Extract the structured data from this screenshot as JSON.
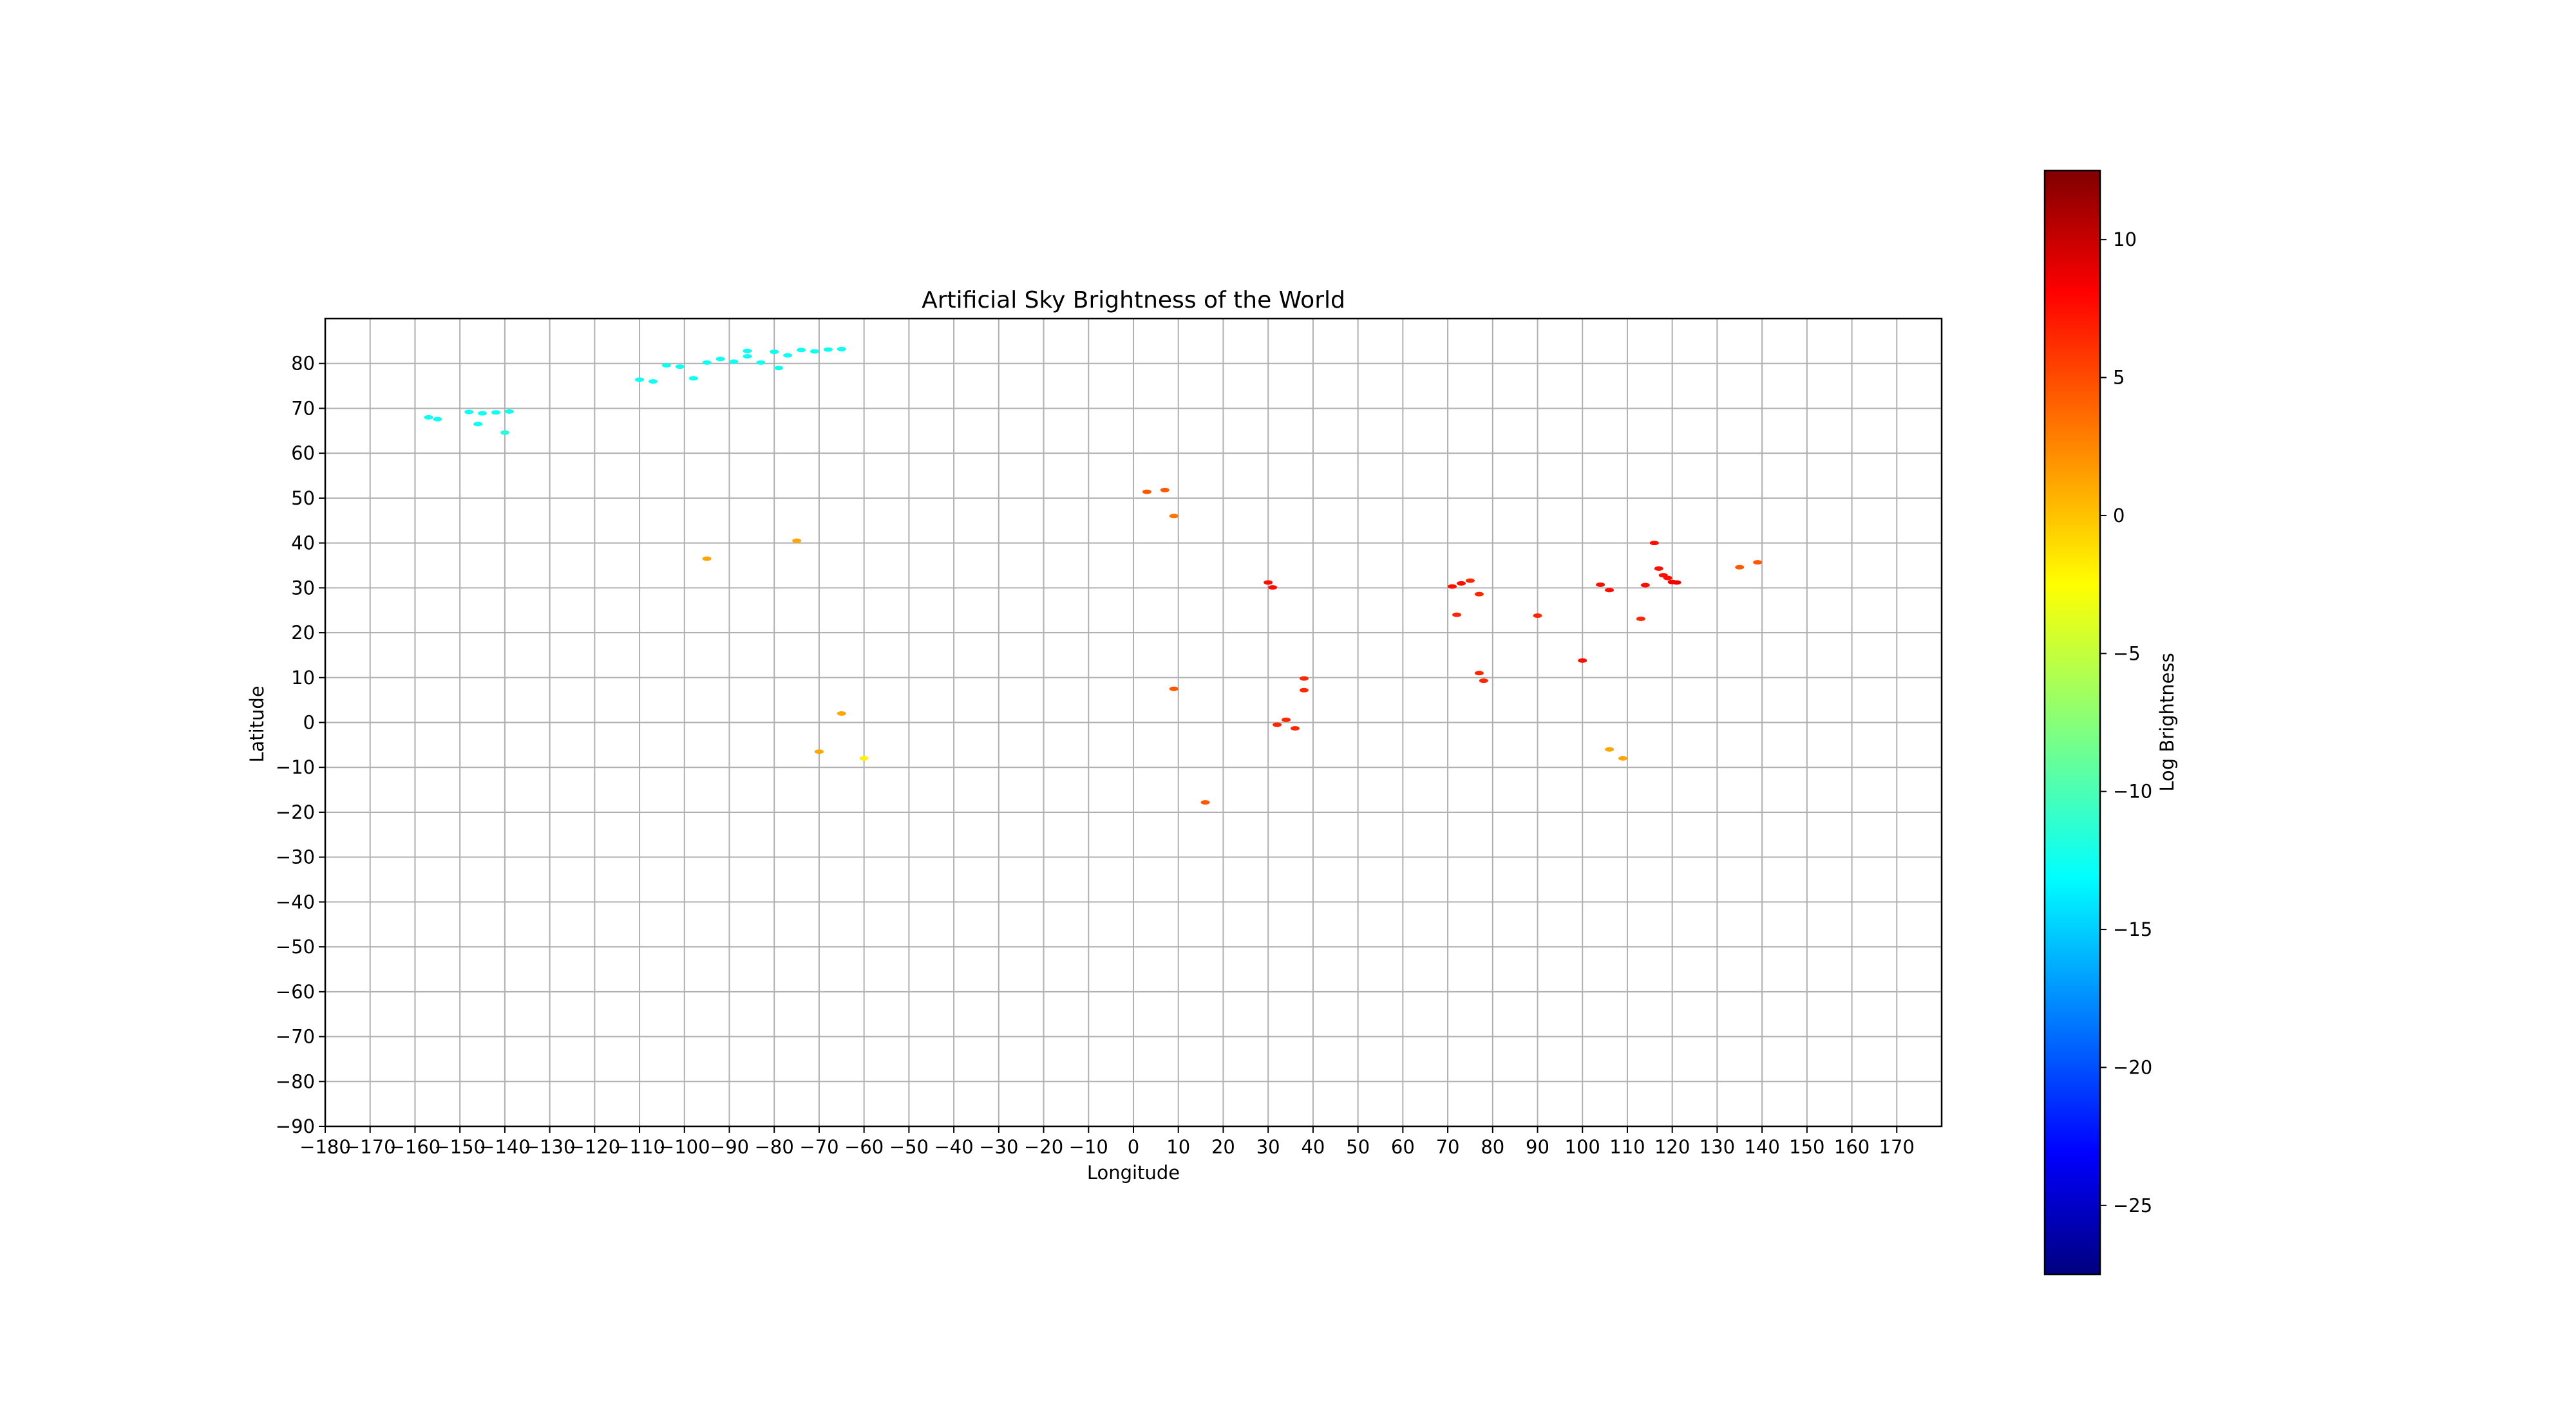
{
  "chart_data": {
    "type": "heatmap",
    "title": "Artificial Sky Brightness of the World",
    "xlabel": "Longitude",
    "ylabel": "Latitude",
    "xlim": [
      -180,
      180
    ],
    "ylim": [
      -90,
      90
    ],
    "xticks": [
      -180,
      -170,
      -160,
      -150,
      -140,
      -130,
      -120,
      -110,
      -100,
      -90,
      -80,
      -70,
      -60,
      -50,
      -40,
      -30,
      -20,
      -10,
      0,
      10,
      20,
      30,
      40,
      50,
      60,
      70,
      80,
      90,
      100,
      110,
      120,
      130,
      140,
      150,
      160,
      170
    ],
    "yticks": [
      80,
      70,
      60,
      50,
      40,
      30,
      20,
      10,
      0,
      -10,
      -20,
      -30,
      -40,
      -50,
      -60,
      -70,
      -80,
      -90
    ],
    "grid": true,
    "colormap": "jet",
    "colorbar": {
      "label": "Log Brightness",
      "min": -27.5,
      "max": 12.5,
      "ticks": [
        10,
        5,
        0,
        -5,
        -10,
        -15,
        -20,
        -25
      ]
    },
    "points": [
      {
        "lon": -157,
        "lat": 68.0,
        "v": -12
      },
      {
        "lon": -155,
        "lat": 67.6,
        "v": -12
      },
      {
        "lon": -148,
        "lat": 69.2,
        "v": -12
      },
      {
        "lon": -145,
        "lat": 68.9,
        "v": -12
      },
      {
        "lon": -142,
        "lat": 69.1,
        "v": -12
      },
      {
        "lon": -139,
        "lat": 69.3,
        "v": -12
      },
      {
        "lon": -146,
        "lat": 66.5,
        "v": -12
      },
      {
        "lon": -140,
        "lat": 64.6,
        "v": -11
      },
      {
        "lon": -110,
        "lat": 76.4,
        "v": -12
      },
      {
        "lon": -107,
        "lat": 76.0,
        "v": -12
      },
      {
        "lon": -104,
        "lat": 79.6,
        "v": -12
      },
      {
        "lon": -101,
        "lat": 79.3,
        "v": -12
      },
      {
        "lon": -98,
        "lat": 76.7,
        "v": -12
      },
      {
        "lon": -95,
        "lat": 80.2,
        "v": -12
      },
      {
        "lon": -92,
        "lat": 81.0,
        "v": -12
      },
      {
        "lon": -89,
        "lat": 80.4,
        "v": -12
      },
      {
        "lon": -86,
        "lat": 81.6,
        "v": -12
      },
      {
        "lon": -83,
        "lat": 80.2,
        "v": -12
      },
      {
        "lon": -80,
        "lat": 82.6,
        "v": -12
      },
      {
        "lon": -77,
        "lat": 81.8,
        "v": -12
      },
      {
        "lon": -74,
        "lat": 83.0,
        "v": -12
      },
      {
        "lon": -71,
        "lat": 82.7,
        "v": -12
      },
      {
        "lon": -68,
        "lat": 83.1,
        "v": -12
      },
      {
        "lon": -65,
        "lat": 83.2,
        "v": -12
      },
      {
        "lon": -79,
        "lat": 79.0,
        "v": -12
      },
      {
        "lon": -86,
        "lat": 82.8,
        "v": -12
      },
      {
        "lon": 3,
        "lat": 51.4,
        "v": 4
      },
      {
        "lon": 7,
        "lat": 51.8,
        "v": 4
      },
      {
        "lon": 30,
        "lat": 31.2,
        "v": 7
      },
      {
        "lon": 31,
        "lat": 30.1,
        "v": 7
      },
      {
        "lon": 32,
        "lat": -0.5,
        "v": 6
      },
      {
        "lon": 34,
        "lat": 0.6,
        "v": 6
      },
      {
        "lon": 36,
        "lat": -1.3,
        "v": 6
      },
      {
        "lon": 38,
        "lat": 7.2,
        "v": 6
      },
      {
        "lon": 38,
        "lat": 9.8,
        "v": 6
      },
      {
        "lon": 71,
        "lat": 30.3,
        "v": 7
      },
      {
        "lon": 73,
        "lat": 31.0,
        "v": 7
      },
      {
        "lon": 72,
        "lat": 24.0,
        "v": 6
      },
      {
        "lon": 75,
        "lat": 31.6,
        "v": 6
      },
      {
        "lon": 77,
        "lat": 28.6,
        "v": 6
      },
      {
        "lon": 77,
        "lat": 11.0,
        "v": 6
      },
      {
        "lon": 78,
        "lat": 9.3,
        "v": 6
      },
      {
        "lon": 90,
        "lat": 23.8,
        "v": 6
      },
      {
        "lon": 100,
        "lat": 13.8,
        "v": 7
      },
      {
        "lon": 104,
        "lat": 30.7,
        "v": 7
      },
      {
        "lon": 106,
        "lat": 29.5,
        "v": 7
      },
      {
        "lon": 113,
        "lat": 23.1,
        "v": 6
      },
      {
        "lon": 114,
        "lat": 30.6,
        "v": 7
      },
      {
        "lon": 116,
        "lat": 40.0,
        "v": 7
      },
      {
        "lon": 117,
        "lat": 34.3,
        "v": 7
      },
      {
        "lon": 120,
        "lat": 31.3,
        "v": 8
      },
      {
        "lon": 121,
        "lat": 31.2,
        "v": 8
      },
      {
        "lon": 119,
        "lat": 32.2,
        "v": 7
      },
      {
        "lon": 118,
        "lat": 32.8,
        "v": 7
      },
      {
        "lon": 139,
        "lat": 35.7,
        "v": 4
      },
      {
        "lon": 135,
        "lat": 34.6,
        "v": 4
      },
      {
        "lon": 9,
        "lat": 46.0,
        "v": 3
      },
      {
        "lon": 9,
        "lat": 7.5,
        "v": 4
      },
      {
        "lon": 16,
        "lat": -17.8,
        "v": 4
      },
      {
        "lon": -65,
        "lat": 2.0,
        "v": 1
      },
      {
        "lon": -60,
        "lat": -8.0,
        "v": -2
      },
      {
        "lon": -70,
        "lat": -6.5,
        "v": 1
      },
      {
        "lon": -75,
        "lat": 40.5,
        "v": 1
      },
      {
        "lon": -95,
        "lat": 36.5,
        "v": 1
      },
      {
        "lon": 109,
        "lat": -8.0,
        "v": 1
      },
      {
        "lon": 106,
        "lat": -6.0,
        "v": 1
      }
    ]
  }
}
